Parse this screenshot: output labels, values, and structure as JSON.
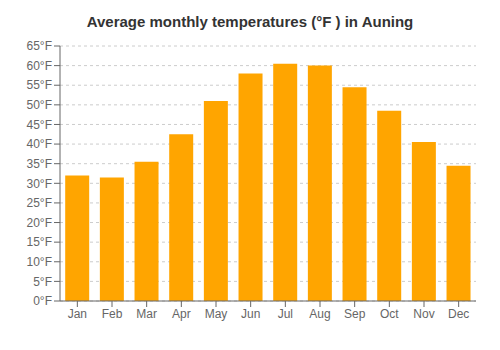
{
  "chart_data": {
    "type": "bar",
    "title": "Average monthly temperatures (°F ) in Auning",
    "categories": [
      "Jan",
      "Feb",
      "Mar",
      "Apr",
      "May",
      "Jun",
      "Jul",
      "Aug",
      "Sep",
      "Oct",
      "Nov",
      "Dec"
    ],
    "values": [
      32,
      31.5,
      35.5,
      42.5,
      51,
      58,
      60.5,
      60,
      54.5,
      48.5,
      40.5,
      34.5
    ],
    "color": "#FFA500",
    "ylim": [
      0,
      65
    ],
    "yticks": [
      {
        "value": 0,
        "label": "0°F"
      },
      {
        "value": 5,
        "label": "5°F"
      },
      {
        "value": 10,
        "label": "10°F"
      },
      {
        "value": 15,
        "label": "15°F"
      },
      {
        "value": 20,
        "label": "20°F"
      },
      {
        "value": 25,
        "label": "25°F"
      },
      {
        "value": 30,
        "label": "30°F"
      },
      {
        "value": 35,
        "label": "35°F"
      },
      {
        "value": 40,
        "label": "40°F"
      },
      {
        "value": 45,
        "label": "45°F"
      },
      {
        "value": 50,
        "label": "50°F"
      },
      {
        "value": 55,
        "label": "55°F"
      },
      {
        "value": 60,
        "label": "60°F"
      },
      {
        "value": 65,
        "label": "65°F"
      }
    ],
    "grid": true
  }
}
